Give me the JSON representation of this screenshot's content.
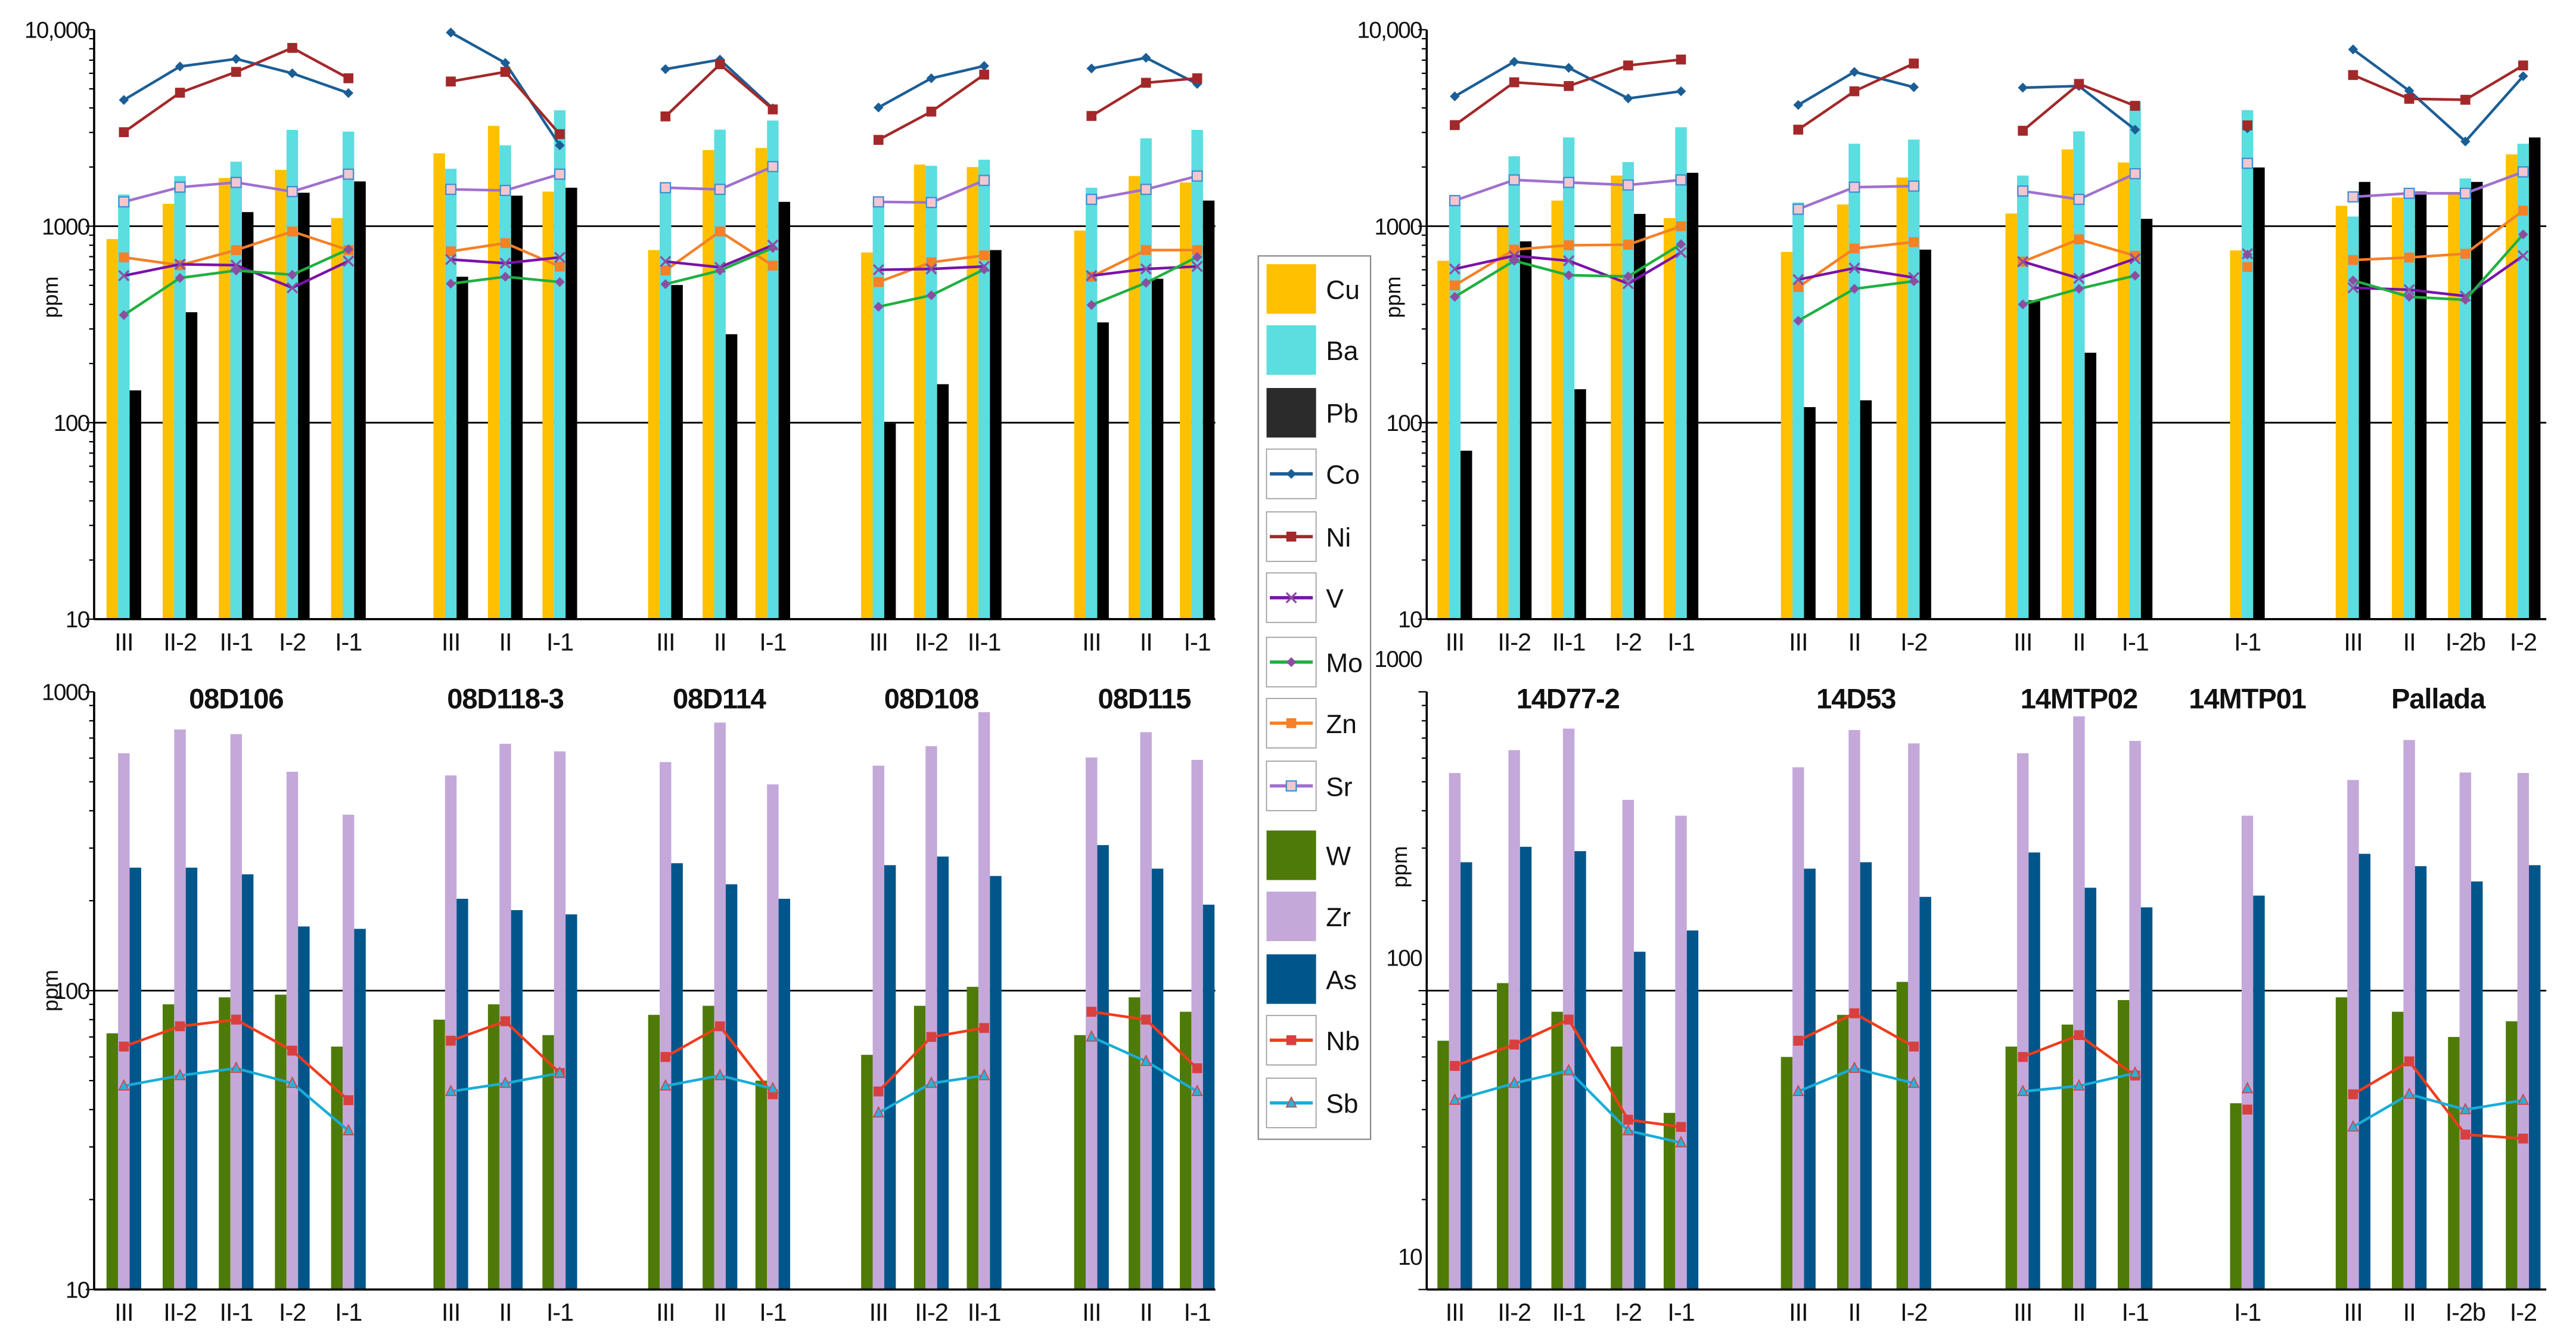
{
  "legend": {
    "items": [
      {
        "label": "Cu",
        "kind": "bar",
        "color": "#FFC000"
      },
      {
        "label": "Ba",
        "kind": "bar",
        "color": "#5CDDE0"
      },
      {
        "label": "Pb",
        "kind": "bar",
        "color": "#2B2B2B"
      },
      {
        "label": "Co",
        "kind": "line",
        "color": "#1B5E96",
        "marker": "diamond",
        "marker_color": "#1B5E96"
      },
      {
        "label": "Ni",
        "kind": "line",
        "color": "#A3282A",
        "marker": "square",
        "marker_color": "#A3282A"
      },
      {
        "label": "V",
        "kind": "line",
        "color": "#7A12A8",
        "marker": "x",
        "marker_color": "#8B4FA0"
      },
      {
        "label": "Mo",
        "kind": "line",
        "color": "#1EB040",
        "marker": "diamond",
        "marker_color": "#8B4FA0"
      },
      {
        "label": "Zn",
        "kind": "line",
        "color": "#F58026",
        "marker": "square",
        "marker_color": "#F58026"
      },
      {
        "label": "Sr",
        "kind": "line",
        "color": "#A070CF",
        "marker": "square",
        "marker_color": "#F4C6D0"
      },
      {
        "label": "W",
        "kind": "bar",
        "color": "#4E7A07"
      },
      {
        "label": "Zr",
        "kind": "bar",
        "color": "#C4A8DA"
      },
      {
        "label": "As",
        "kind": "bar",
        "color": "#00568A"
      },
      {
        "label": "Nb",
        "kind": "line",
        "color": "#F03C1C",
        "marker": "square",
        "marker_color": "#D84040"
      },
      {
        "label": "Sb",
        "kind": "line",
        "color": "#19ADD8",
        "marker": "triangle",
        "marker_color": "#2BB0D8"
      }
    ]
  },
  "chart_data": [
    {
      "panel": "top-left",
      "type": "bar",
      "yscale": "log",
      "ylim": [
        10,
        10000
      ],
      "ylabel": "ppm",
      "yticks": [
        {
          "value": 10,
          "label": "10"
        },
        {
          "value": 100,
          "label": "100"
        },
        {
          "value": 1000,
          "label": "1000"
        },
        {
          "value": 10000,
          "label": "10,000"
        }
      ],
      "gridlines": [
        100,
        1000
      ],
      "show_group_titles": false,
      "groups": [
        {
          "name": "08D106",
          "categories": [
            "III",
            "II-2",
            "II-1",
            "I-2",
            "I-1"
          ]
        },
        {
          "name": "08D118-3",
          "categories": [
            "III",
            "II",
            "I-1"
          ]
        },
        {
          "name": "08D114",
          "categories": [
            "III",
            "II",
            "I-1"
          ]
        },
        {
          "name": "08D108",
          "categories": [
            "III",
            "II-2",
            "II-1"
          ]
        },
        {
          "name": "08D115",
          "categories": [
            "III",
            "II",
            "I-1"
          ]
        }
      ],
      "bar_series": [
        {
          "name": "Cu",
          "values": [
            860,
            1300,
            1760,
            1935,
            1100,
            2350,
            3240,
            1500,
            756,
            2440,
            2500,
            735,
            2060,
            2000,
            950,
            1800,
            1670
          ]
        },
        {
          "name": "Ba",
          "values": [
            1450,
            1800,
            2130,
            3090,
            3030,
            1960,
            2580,
            3890,
            1570,
            3100,
            3450,
            1340,
            2030,
            2180,
            1570,
            2800,
            3090
          ]
        },
        {
          "name": "Pb",
          "values": [
            146,
            365,
            1180,
            1480,
            1690,
            553,
            1430,
            1570,
            502,
            282,
            1330,
            99,
            157,
            756,
            324,
            540,
            1350
          ]
        }
      ],
      "line_series": [
        {
          "name": "Co",
          "values": [
            4390,
            6500,
            7100,
            6000,
            4760,
            9680,
            6780,
            2580,
            6300,
            7040,
            3980,
            4020,
            5660,
            6540,
            6350,
            7200,
            5300
          ]
        },
        {
          "name": "Ni",
          "values": [
            3010,
            4780,
            6100,
            8080,
            5660,
            5450,
            6100,
            2940,
            3620,
            6670,
            3930,
            2750,
            3830,
            5910,
            3640,
            5370,
            5660
          ]
        },
        {
          "name": "Sr",
          "values": [
            1330,
            1580,
            1670,
            1500,
            1840,
            1540,
            1520,
            1840,
            1570,
            1540,
            2010,
            1330,
            1320,
            1710,
            1370,
            1540,
            1800
          ]
        },
        {
          "name": "Zn",
          "values": [
            694,
            633,
            756,
            940,
            756,
            745,
            820,
            623,
            595,
            940,
            630,
            520,
            655,
            710,
            553,
            756,
            756
          ]
        },
        {
          "name": "V",
          "values": [
            560,
            640,
            633,
            486,
            664,
            677,
            648,
            694,
            661,
            618,
            801,
            600,
            606,
            624,
            560,
            606,
            624
          ]
        },
        {
          "name": "Mo",
          "values": [
            353,
            545,
            595,
            566,
            763,
            510,
            553,
            520,
            507,
            595,
            775,
            389,
            445,
            603,
            397,
            515,
            697
          ]
        }
      ]
    },
    {
      "panel": "top-right",
      "type": "bar",
      "yscale": "log",
      "ylim": [
        10,
        10000
      ],
      "ylabel": "ppm",
      "yticks": [
        {
          "value": 10,
          "label": "10"
        },
        {
          "value": 100,
          "label": "100"
        },
        {
          "value": 1000,
          "label": "1000"
        },
        {
          "value": 10000,
          "label": "10,000"
        }
      ],
      "gridlines": [
        100,
        1000
      ],
      "show_group_titles": false,
      "groups": [
        {
          "name": "14D77-2",
          "categories": [
            "III",
            "II-2",
            "II-1",
            "I-2",
            "I-1"
          ]
        },
        {
          "name": "14D53",
          "categories": [
            "III",
            "II",
            "I-2"
          ]
        },
        {
          "name": "14MTP02",
          "categories": [
            "III",
            "II",
            "I-1"
          ]
        },
        {
          "name": "14MTP01",
          "categories": [
            "I-1"
          ]
        },
        {
          "name": "Pallada",
          "categories": [
            "III",
            "II",
            "I-2b",
            "I-2"
          ]
        }
      ],
      "bar_series": [
        {
          "name": "Cu",
          "values": [
            667,
            990,
            1350,
            1810,
            1100,
            740,
            1290,
            1770,
            1160,
            2460,
            2110,
            753,
            1270,
            1400,
            1490,
            2320
          ]
        },
        {
          "name": "Ba",
          "values": [
            1320,
            2270,
            2830,
            2120,
            3190,
            1320,
            2630,
            2760,
            1810,
            3040,
            4300,
            3900,
            1120,
            1510,
            1750,
            2630
          ]
        },
        {
          "name": "Pb",
          "values": [
            72,
            837,
            148,
            1155,
            1870,
            120,
            130,
            760,
            420,
            227,
            1090,
            1990,
            1680,
            1500,
            1680,
            2830
          ]
        }
      ],
      "line_series": [
        {
          "name": "Co",
          "values": [
            4580,
            6870,
            6400,
            4470,
            4860,
            4140,
            6100,
            5100,
            5070,
            5170,
            3100,
            3150,
            7940,
            4890,
            2700,
            5800
          ]
        },
        {
          "name": "Ni",
          "values": [
            3270,
            5400,
            5170,
            6580,
            7050,
            3100,
            4860,
            6730,
            3060,
            5300,
            4100,
            3260,
            5880,
            4450,
            4400,
            6580
          ]
        },
        {
          "name": "Sr",
          "values": [
            1350,
            1720,
            1670,
            1620,
            1720,
            1220,
            1580,
            1600,
            1510,
            1370,
            1850,
            2090,
            1410,
            1470,
            1470,
            1890
          ]
        },
        {
          "name": "Zn",
          "values": [
            500,
            760,
            800,
            805,
            1000,
            490,
            770,
            830,
            660,
            857,
            707,
            620,
            673,
            693,
            724,
            1200
          ]
        },
        {
          "name": "V",
          "values": [
            606,
            707,
            667,
            510,
            735,
            535,
            612,
            548,
            660,
            543,
            683,
            724,
            486,
            475,
            441,
            707
          ]
        },
        {
          "name": "Mo",
          "values": [
            437,
            667,
            563,
            555,
            810,
            330,
            480,
            525,
            400,
            480,
            560,
            717,
            530,
            437,
            422,
            908
          ]
        }
      ]
    },
    {
      "panel": "bottom-left",
      "type": "bar",
      "yscale": "log",
      "ylim": [
        10,
        1000
      ],
      "ylabel": "ppm",
      "yticks": [
        {
          "value": 10,
          "label": "10"
        },
        {
          "value": 100,
          "label": "100"
        },
        {
          "value": 1000,
          "label": "1000"
        }
      ],
      "gridlines": [
        100
      ],
      "show_group_titles": true,
      "groups": [
        {
          "name": "08D106",
          "categories": [
            "III",
            "II-2",
            "II-1",
            "I-2",
            "I-1"
          ]
        },
        {
          "name": "08D118-3",
          "categories": [
            "III",
            "II",
            "I-1"
          ]
        },
        {
          "name": "08D114",
          "categories": [
            "III",
            "II",
            "I-1"
          ]
        },
        {
          "name": "08D108",
          "categories": [
            "III",
            "II-2",
            "II-1"
          ]
        },
        {
          "name": "08D115",
          "categories": [
            "III",
            "II",
            "I-1"
          ]
        }
      ],
      "bar_series": [
        {
          "name": "W",
          "values": [
            72,
            90,
            95,
            97,
            65,
            80,
            90,
            71,
            83,
            89,
            50,
            61,
            89,
            103,
            71,
            95,
            85
          ]
        },
        {
          "name": "Zr",
          "values": [
            623,
            748,
            722,
            540,
            388,
            525,
            670,
            632,
            582,
            789,
            490,
            566,
            658,
            855,
            603,
            733,
            592
          ]
        },
        {
          "name": "As",
          "values": [
            258,
            258,
            245,
            164,
            161,
            203,
            186,
            180,
            267,
            227,
            203,
            263,
            281,
            242,
            307,
            256,
            194
          ]
        }
      ],
      "line_series": [
        {
          "name": "Nb",
          "values": [
            65,
            76,
            80,
            63,
            43,
            68,
            79,
            53,
            60,
            76,
            45,
            46,
            70,
            75,
            85,
            80,
            55
          ]
        },
        {
          "name": "Sb",
          "values": [
            48,
            52,
            55,
            49,
            34,
            46,
            49,
            53,
            48,
            52,
            47,
            39,
            49,
            52,
            70,
            58,
            46
          ]
        }
      ]
    },
    {
      "panel": "bottom-right",
      "type": "bar",
      "yscale": "log",
      "ylim": [
        10,
        1000
      ],
      "ylabel": "ppm",
      "yticks": [
        {
          "value": 10,
          "label": "10"
        },
        {
          "value": 100,
          "label": "100"
        },
        {
          "value": 1000,
          "label": "1000"
        }
      ],
      "gridlines": [
        100
      ],
      "show_group_titles": true,
      "groups": [
        {
          "name": "14D77-2",
          "categories": [
            "III",
            "II-2",
            "II-1",
            "I-2",
            "I-1"
          ]
        },
        {
          "name": "14D53",
          "categories": [
            "III",
            "II",
            "I-2"
          ]
        },
        {
          "name": "14MTP02",
          "categories": [
            "III",
            "II",
            "I-1"
          ]
        },
        {
          "name": "14MTP01",
          "categories": [
            "I-1"
          ]
        },
        {
          "name": "Pallada",
          "categories": [
            "III",
            "II",
            "I-2b",
            "I-2"
          ]
        }
      ],
      "bar_series": [
        {
          "name": "W",
          "values": [
            68,
            106,
            85,
            65,
            39,
            60,
            83,
            107,
            65,
            77,
            93,
            42,
            95,
            85,
            70,
            79
          ]
        },
        {
          "name": "Zr",
          "values": [
            535,
            638,
            753,
            435,
            385,
            559,
            745,
            672,
            623,
            828,
            685,
            385,
            507,
            690,
            537,
            535
          ]
        },
        {
          "name": "As",
          "values": [
            269,
            303,
            293,
            135,
            159,
            256,
            269,
            206,
            290,
            221,
            190,
            208,
            287,
            261,
            232,
            263
          ]
        }
      ],
      "line_series": [
        {
          "name": "Nb",
          "values": [
            56,
            66,
            80,
            37,
            35,
            68,
            84,
            65,
            60,
            71,
            52,
            40,
            45,
            58,
            33,
            32
          ]
        },
        {
          "name": "Sb",
          "values": [
            43,
            49,
            54,
            34,
            31,
            46,
            55,
            49,
            46,
            48,
            53,
            47,
            35,
            45,
            40,
            43
          ]
        }
      ]
    }
  ]
}
